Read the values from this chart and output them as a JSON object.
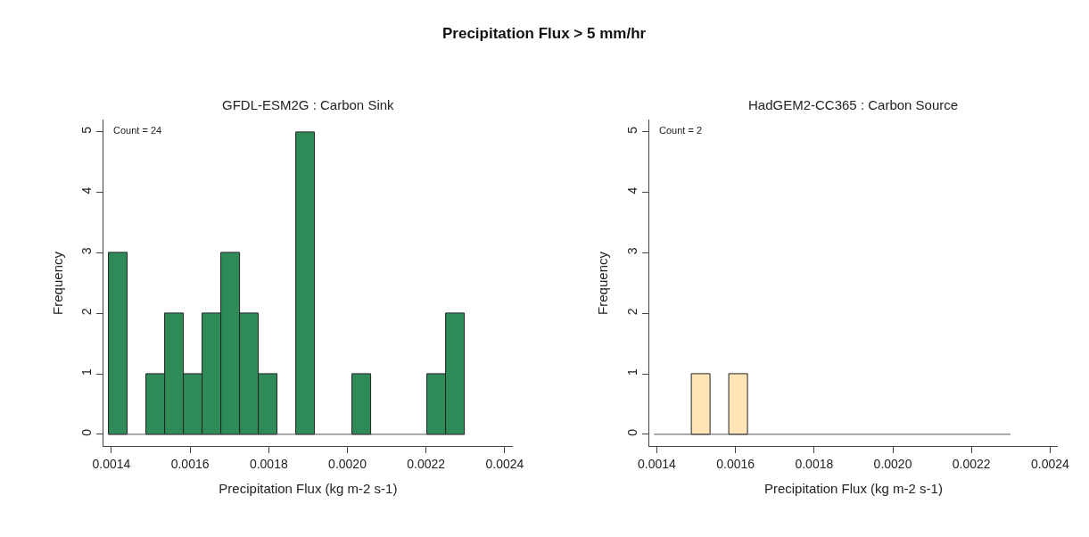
{
  "chart_data": [
    {
      "type": "histogram",
      "title": "GFDL-ESM2G : Carbon Sink",
      "xlabel": "Precipitation Flux (kg m-2 s-1)",
      "ylabel": "Frequency",
      "annotations": [
        "Precipitation Flux > 5 mm/hr",
        "Count = 24"
      ],
      "bins": [
        0.001393,
        0.0014407,
        0.0014884,
        0.0015361,
        0.0015838,
        0.0016315,
        0.0016792,
        0.0017269,
        0.0017746,
        0.0018223,
        0.00187,
        0.0019177,
        0.0019654,
        0.0020131,
        0.0020608,
        0.0021085,
        0.0021562,
        0.0022039,
        0.0022516,
        0.0022993
      ],
      "values": [
        3,
        0,
        1,
        2,
        1,
        2,
        3,
        2,
        1,
        0,
        5,
        0,
        0,
        1,
        0,
        0,
        0,
        1,
        2
      ],
      "color": "#2e8b57",
      "xlim": [
        0.00138,
        0.00242
      ],
      "xticks": [
        0.0014,
        0.0016,
        0.0018,
        {
          "value": 0.002,
          "label": "0.0020"
        },
        0.0022,
        0.0024
      ],
      "ylim": [
        -0.2,
        5.2
      ],
      "yticks": [
        0,
        1,
        2,
        3,
        4,
        5
      ]
    },
    {
      "type": "histogram",
      "title": "HadGEM2-CC365 : Carbon Source",
      "xlabel": "Precipitation Flux (kg m-2 s-1)",
      "ylabel": "Frequency",
      "annotations": [
        "Count = 2"
      ],
      "bins": [
        0.001393,
        0.0014407,
        0.0014884,
        0.0015361,
        0.0015838,
        0.0016315,
        0.0016792,
        0.0017269,
        0.0017746,
        0.0018223,
        0.00187,
        0.0019177,
        0.0019654,
        0.0020131,
        0.0020608,
        0.0021085,
        0.0021562,
        0.0022039,
        0.0022516,
        0.0022993
      ],
      "values": [
        0,
        0,
        1,
        0,
        1,
        0,
        0,
        0,
        0,
        0,
        0,
        0,
        0,
        0,
        0,
        0,
        0,
        0,
        0
      ],
      "color": "#ffe4b5",
      "xlim": [
        0.00138,
        0.00242
      ],
      "xticks": [
        0.0014,
        0.0016,
        0.0018,
        {
          "value": 0.002,
          "label": "0.0020"
        },
        0.0022,
        0.0024
      ],
      "ylim": [
        -0.2,
        5.2
      ],
      "yticks": [
        0,
        1,
        2,
        3,
        4,
        5
      ]
    }
  ]
}
